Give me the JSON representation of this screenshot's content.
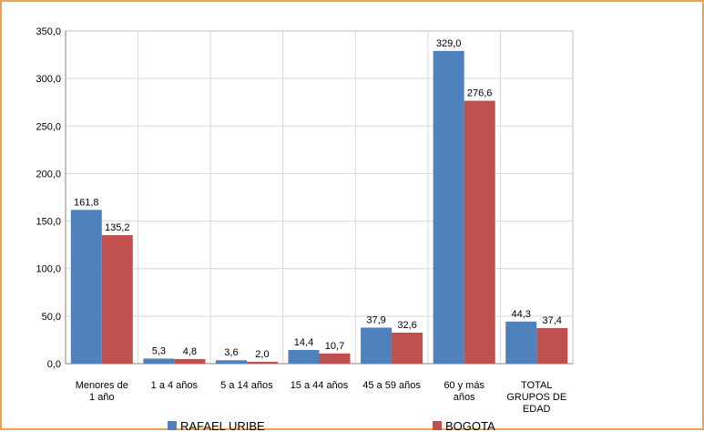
{
  "chart_data": {
    "type": "bar",
    "categories": [
      [
        "Menores de",
        "1 año"
      ],
      [
        "1 a 4 años"
      ],
      [
        "5 a 14 años"
      ],
      [
        "15 a 44 años"
      ],
      [
        "45 a 59 años"
      ],
      [
        "60 y más",
        "años"
      ],
      [
        "TOTAL",
        "GRUPOS DE",
        "EDAD"
      ]
    ],
    "series": [
      {
        "name": "RAFAEL URIBE",
        "color": "#4f81bd",
        "values": [
          161.8,
          5.3,
          3.6,
          14.4,
          37.9,
          329.0,
          44.3
        ],
        "labels": [
          "161,8",
          "5,3",
          "3,6",
          "14,4",
          "37,9",
          "329,0",
          "44,3"
        ]
      },
      {
        "name": "BOGOTA",
        "color": "#c0504d",
        "values": [
          135.2,
          4.8,
          2.0,
          10.7,
          32.6,
          276.6,
          37.4
        ],
        "labels": [
          "135,2",
          "4,8",
          "2,0",
          "10,7",
          "32,6",
          "276,6",
          "37,4"
        ]
      }
    ],
    "ylim": [
      0,
      350
    ],
    "yticks": [
      0,
      50,
      100,
      150,
      200,
      250,
      300,
      350
    ],
    "ytick_labels": [
      "0,0",
      "50,0",
      "100,0",
      "150,0",
      "200,0",
      "250,0",
      "300,0",
      "350,0"
    ],
    "grid": true,
    "legend_position": "bottom"
  }
}
